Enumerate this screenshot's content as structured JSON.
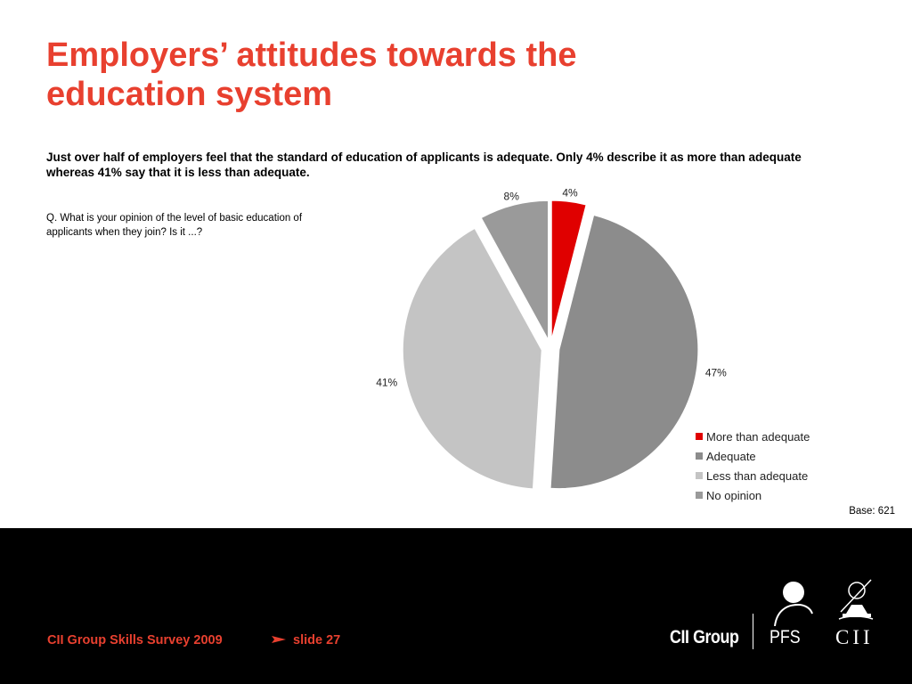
{
  "slide": {
    "title_lines": [
      "Employers’ attitudes towards the",
      "education system"
    ],
    "subtitle_lines": [
      "Just over half of employers feel that the standard of education of applicants is adequate. Only 4% describe it as more than adequate",
      "whereas 41% say that it is less than adequate."
    ],
    "question_lines": [
      "Q. What is your opinion of the level of basic education of",
      "applicants when they join? Is it ...?"
    ],
    "base_label": "Base: 621"
  },
  "chart_data": {
    "type": "pie",
    "title": "",
    "categories": [
      "More than adequate",
      "Adequate",
      "Less than adequate",
      "No opinion"
    ],
    "values": [
      4,
      47,
      41,
      8
    ],
    "labels": [
      "4%",
      "47%",
      "41%",
      "8%"
    ],
    "colors": [
      "#e00000",
      "#8c8c8c",
      "#c4c4c4",
      "#9a9a9a"
    ],
    "exploded": true,
    "legend_position": "right-bottom"
  },
  "footer": {
    "title": "CII Group Skills Survey 2009",
    "arrow_icon": "right-arrow-icon",
    "slide_label": "slide 27",
    "logos": {
      "cii_group": "CII Group",
      "pfs": "PFS",
      "cii": "CII"
    }
  }
}
